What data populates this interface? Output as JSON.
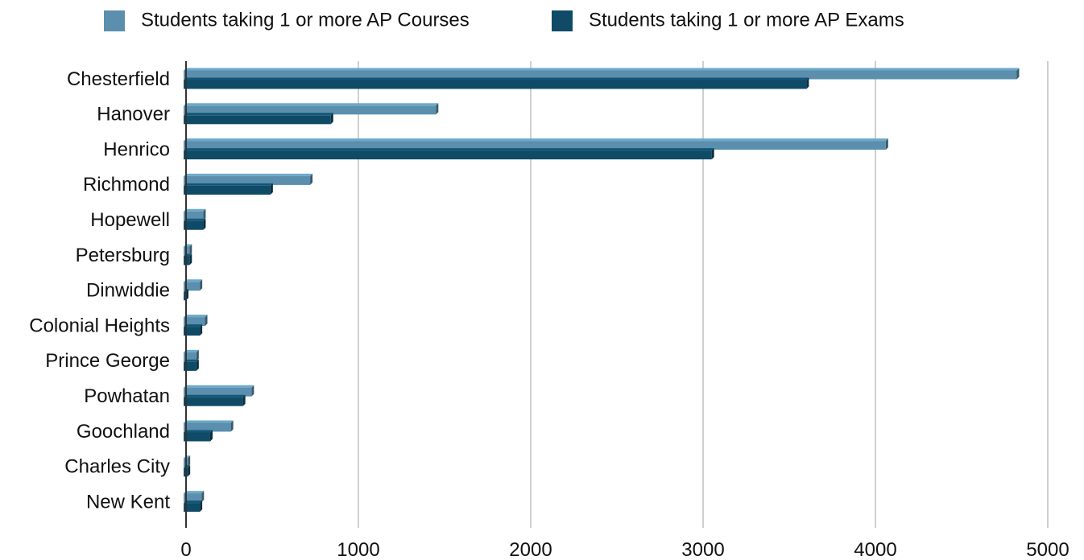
{
  "chart_data": {
    "type": "bar",
    "orientation": "horizontal",
    "style": "3d",
    "categories": [
      "Chesterfield",
      "Hanover",
      "Henrico",
      "Richmond",
      "Hopewell",
      "Petersburg",
      "Dinwiddie",
      "Colonial Heights",
      "Prince George",
      "Powhatan",
      "Goochland",
      "Charles City",
      "New Kent"
    ],
    "series": [
      {
        "name": "Students taking 1 or more AP Courses",
        "color": "#5b8fad",
        "values": [
          4820,
          1450,
          4060,
          720,
          100,
          20,
          80,
          110,
          60,
          380,
          260,
          10,
          90
        ]
      },
      {
        "name": "Students taking 1 or more AP Exams",
        "color": "#0f4a66",
        "values": [
          3600,
          840,
          3050,
          490,
          100,
          20,
          0,
          80,
          60,
          330,
          140,
          10,
          80
        ]
      }
    ],
    "xlim": [
      0,
      5000
    ],
    "xticks": [
      0,
      1000,
      2000,
      3000,
      4000,
      5000
    ],
    "xtick_labels": [
      "0",
      "1000",
      "2000",
      "3000",
      "4000",
      "5000"
    ],
    "grid": "vertical",
    "legend_position": "top",
    "title": "",
    "xlabel": "",
    "ylabel": ""
  }
}
